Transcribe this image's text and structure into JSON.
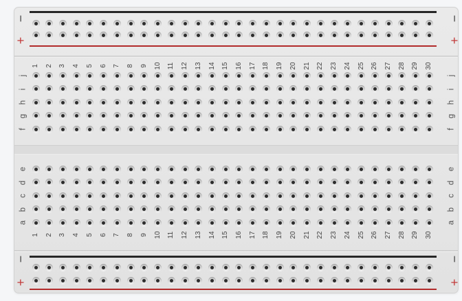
{
  "board": {
    "component": "breadboard",
    "column_numbers": [
      "1",
      "2",
      "3",
      "4",
      "5",
      "6",
      "7",
      "8",
      "9",
      "10",
      "11",
      "12",
      "13",
      "14",
      "15",
      "16",
      "17",
      "18",
      "19",
      "20",
      "21",
      "22",
      "23",
      "24",
      "25",
      "26",
      "27",
      "28",
      "29",
      "30"
    ],
    "top_half_rows": [
      "j",
      "i",
      "h",
      "g",
      "f"
    ],
    "bottom_half_rows": [
      "e",
      "d",
      "c",
      "b",
      "a"
    ],
    "rail": {
      "negative_label": "−",
      "positive_label": "+"
    },
    "counts": {
      "columns": 30,
      "rail_rows_per_rail": 2,
      "letter_rows": 10
    },
    "colors": {
      "page_bg": "#f5f6f8",
      "board_bg": "#e6e6e6",
      "center_gap": "#dcdcdc",
      "rail_negative_line": "#262626",
      "rail_positive_line": "#b22a2a",
      "negative_label": "#474747",
      "positive_label": "#c23a3a",
      "label_text": "#4a4a4a",
      "hole_dot": "#2d2d2d"
    }
  }
}
